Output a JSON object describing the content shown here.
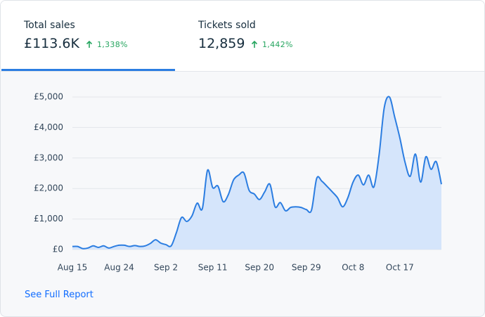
{
  "tabs": [
    {
      "label": "Total sales",
      "value": "£113.6K",
      "change": "1,338%"
    },
    {
      "label": "Tickets sold",
      "value": "12,859",
      "change": "1,442%"
    }
  ],
  "link": "See Full Report",
  "chart_data": {
    "type": "area",
    "categories": [
      "Aug 15",
      null,
      null,
      null,
      null,
      null,
      null,
      null,
      null,
      "Aug 24",
      null,
      null,
      null,
      null,
      null,
      null,
      null,
      null,
      "Sep 2",
      null,
      null,
      null,
      null,
      null,
      null,
      null,
      null,
      "Sep 11",
      null,
      null,
      null,
      null,
      null,
      null,
      null,
      null,
      "Sep 20",
      null,
      null,
      null,
      null,
      null,
      null,
      null,
      null,
      "Sep 29",
      null,
      null,
      null,
      null,
      null,
      null,
      null,
      null,
      "Oct 8",
      null,
      null,
      null,
      null,
      null,
      null,
      null,
      null,
      "Oct 17",
      null,
      null,
      null,
      null,
      null,
      null,
      null,
      null
    ],
    "values": [
      100,
      100,
      30,
      50,
      120,
      70,
      120,
      50,
      100,
      140,
      140,
      100,
      130,
      100,
      120,
      200,
      320,
      210,
      160,
      120,
      550,
      1050,
      920,
      1100,
      1520,
      1340,
      2600,
      2030,
      2080,
      1570,
      1800,
      2280,
      2440,
      2510,
      1940,
      1820,
      1640,
      1890,
      2140,
      1400,
      1540,
      1270,
      1380,
      1400,
      1380,
      1310,
      1290,
      2330,
      2240,
      2070,
      1890,
      1700,
      1400,
      1700,
      2210,
      2440,
      2120,
      2440,
      2050,
      3090,
      4650,
      5000,
      4350,
      3660,
      2860,
      2400,
      3130,
      2210,
      3040,
      2630,
      2880,
      2140
    ],
    "color": "#2b7de1",
    "ylim": [
      0,
      5000
    ],
    "yticks": [
      {
        "value": 0,
        "label": "£0"
      },
      {
        "value": 1000,
        "label": "£1,000"
      },
      {
        "value": 2000,
        "label": "£2,000"
      },
      {
        "value": 3000,
        "label": "£3,000"
      },
      {
        "value": 4000,
        "label": "£4,000"
      },
      {
        "value": 5000,
        "label": "£5,000"
      }
    ],
    "grid": true
  }
}
